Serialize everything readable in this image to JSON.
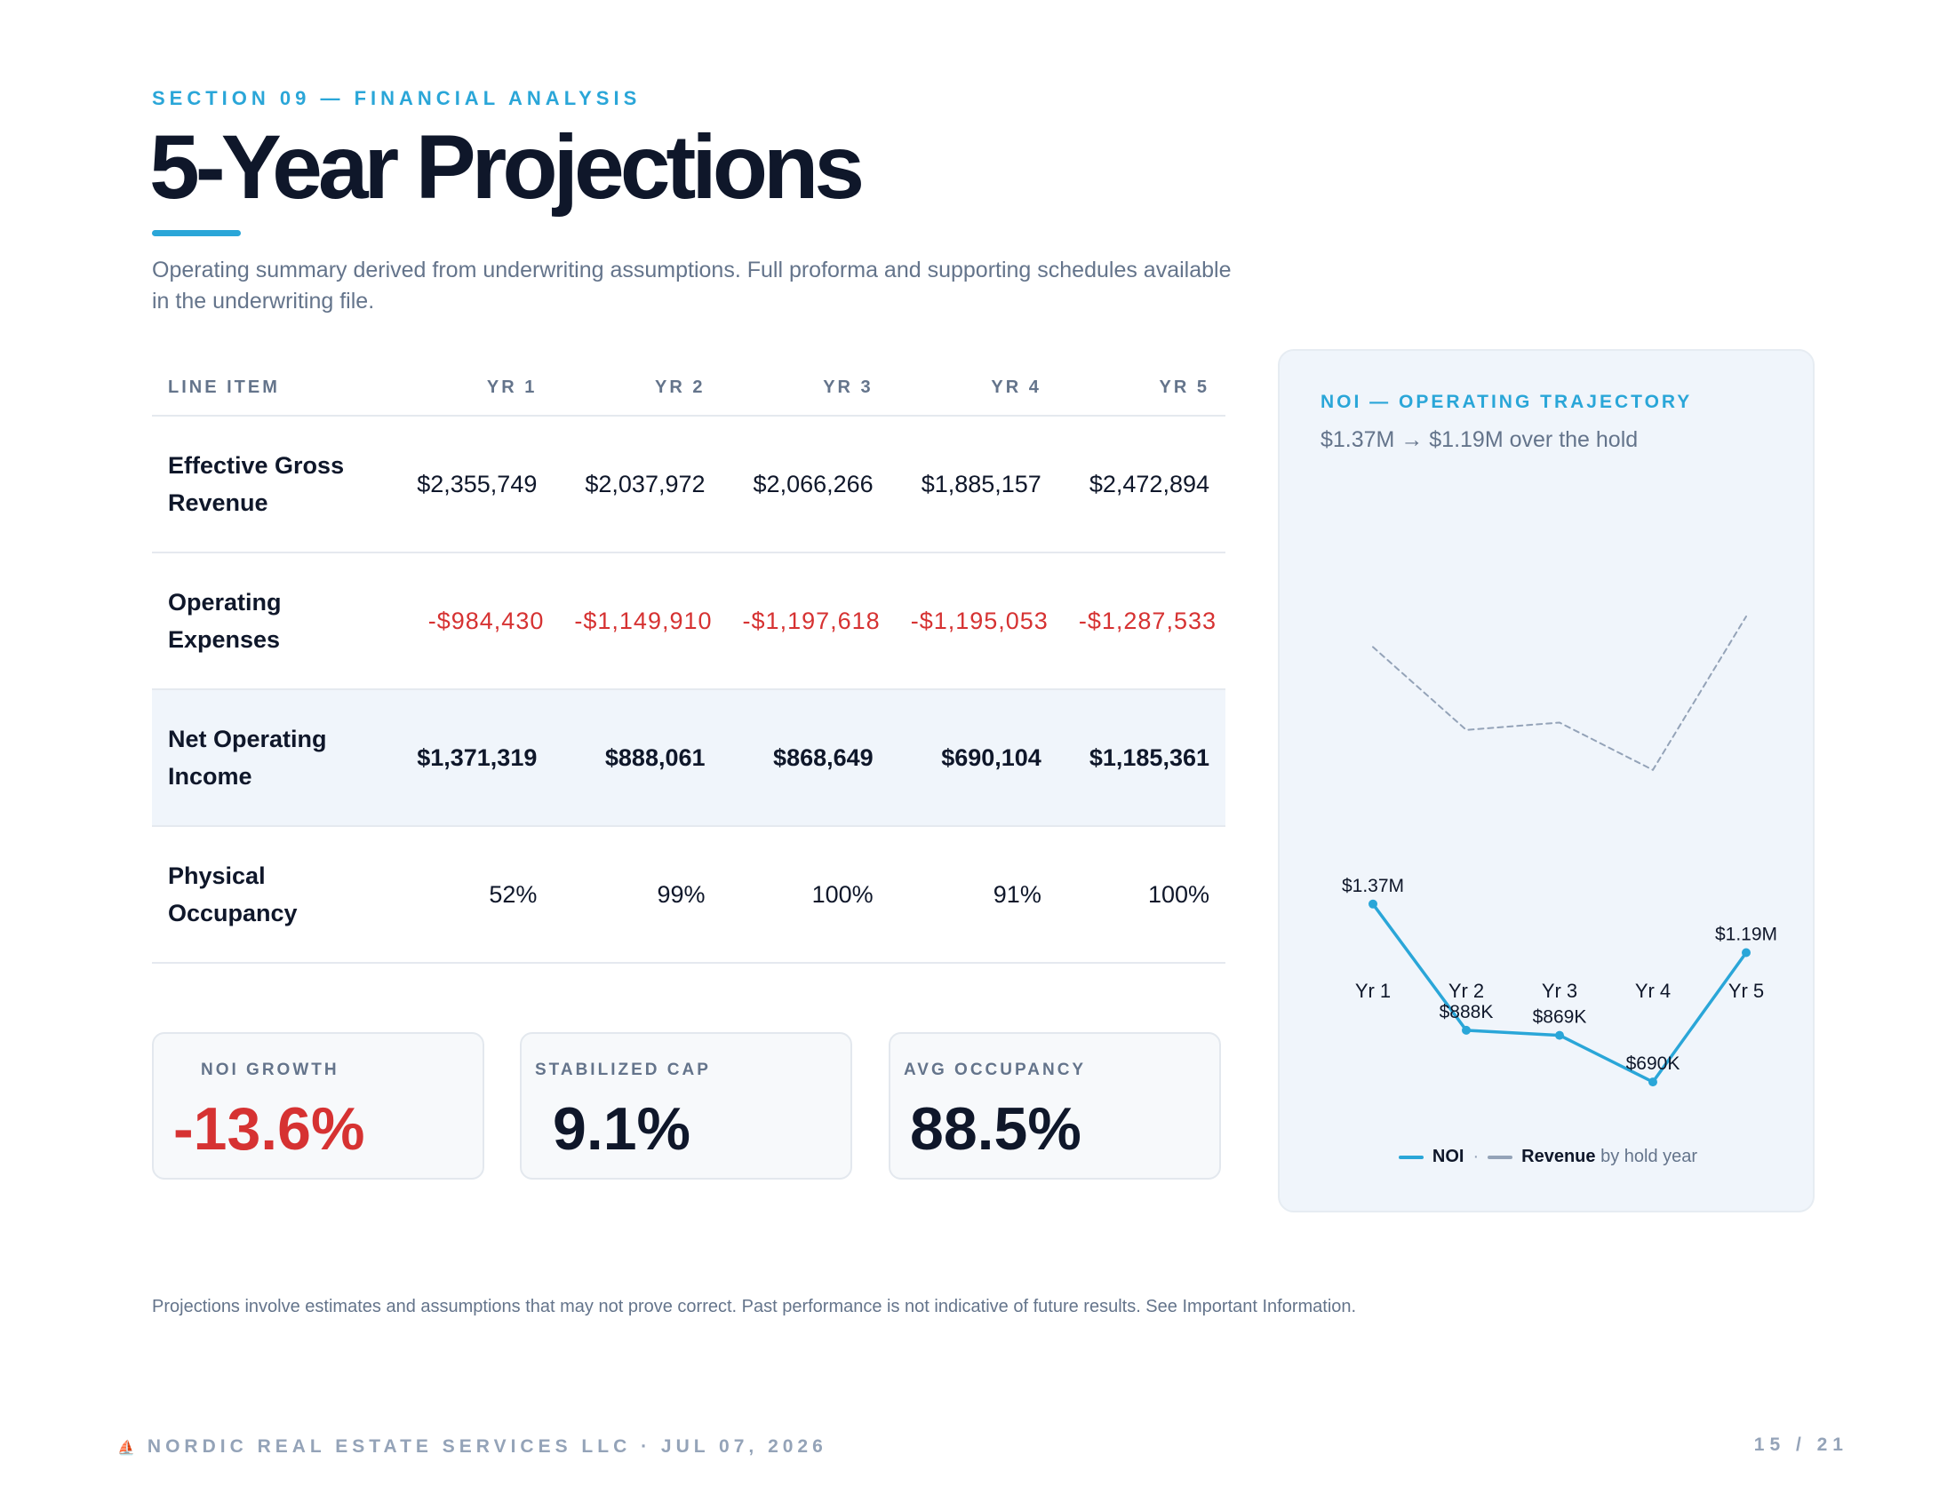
{
  "header": {
    "eyebrow": "SECTION 09 — FINANCIAL ANALYSIS",
    "title": "5-Year Projections",
    "intro": "Operating summary derived from underwriting assumptions. Full proforma and supporting schedules available in the underwriting file."
  },
  "table": {
    "headers": [
      "LINE ITEM",
      "YR 1",
      "YR 2",
      "YR 3",
      "YR 4",
      "YR 5"
    ],
    "rows": [
      {
        "label": "Effective Gross Revenue",
        "values": [
          "$2,355,749",
          "$2,037,972",
          "$2,066,266",
          "$1,885,157",
          "$2,472,894"
        ]
      },
      {
        "label": "Operating Expenses",
        "values": [
          "-$984,430",
          "-$1,149,910",
          "-$1,197,618",
          "-$1,195,053",
          "-$1,287,533"
        ]
      },
      {
        "label": "Net Operating Income",
        "values": [
          "$1,371,319",
          "$888,061",
          "$868,649",
          "$690,104",
          "$1,185,361"
        ]
      },
      {
        "label": "Physical Occupancy",
        "values": [
          "52%",
          "99%",
          "100%",
          "91%",
          "100%"
        ]
      }
    ]
  },
  "kpis": [
    {
      "label": "NOI GROWTH",
      "value": "-13.6%"
    },
    {
      "label": "STABILIZED CAP",
      "value": "9.1%"
    },
    {
      "label": "AVG OCCUPANCY",
      "value": "88.5%"
    }
  ],
  "chart": {
    "eyebrow": "NOI — OPERATING TRAJECTORY",
    "subtitle": "$1.37M → $1.19M over the hold",
    "legend": {
      "noi": "NOI",
      "sep": "·",
      "revenue": "Revenue",
      "suffix": "by hold year"
    }
  },
  "chart_data": {
    "type": "line",
    "categories": [
      "Yr 1",
      "Yr 2",
      "Yr 3",
      "Yr 4",
      "Yr 5"
    ],
    "series": [
      {
        "name": "NOI",
        "values": [
          1371319,
          888061,
          868649,
          690104,
          1185361
        ],
        "labels": [
          "$1.37M",
          "$888K",
          "$869K",
          "$690K",
          "$1.19M"
        ],
        "color": "#2aa6d8",
        "style": "solid"
      },
      {
        "name": "Revenue",
        "values": [
          2355749,
          2037972,
          2066266,
          1885157,
          2472894
        ],
        "color": "#94a3b8",
        "style": "dashed"
      }
    ],
    "grid": false,
    "legend": "bottom"
  },
  "disclaimer": "Projections involve estimates and assumptions that may not prove correct. Past performance is not indicative of future results. See Important Information.",
  "footer": {
    "company": "NORDIC REAL ESTATE SERVICES LLC",
    "date": "· JUL 07, 2026",
    "page": "15  /  21"
  },
  "colors": {
    "accent": "#2aa6d8",
    "negative": "#d63232",
    "ink": "#0f172a",
    "muted": "#64748b"
  }
}
